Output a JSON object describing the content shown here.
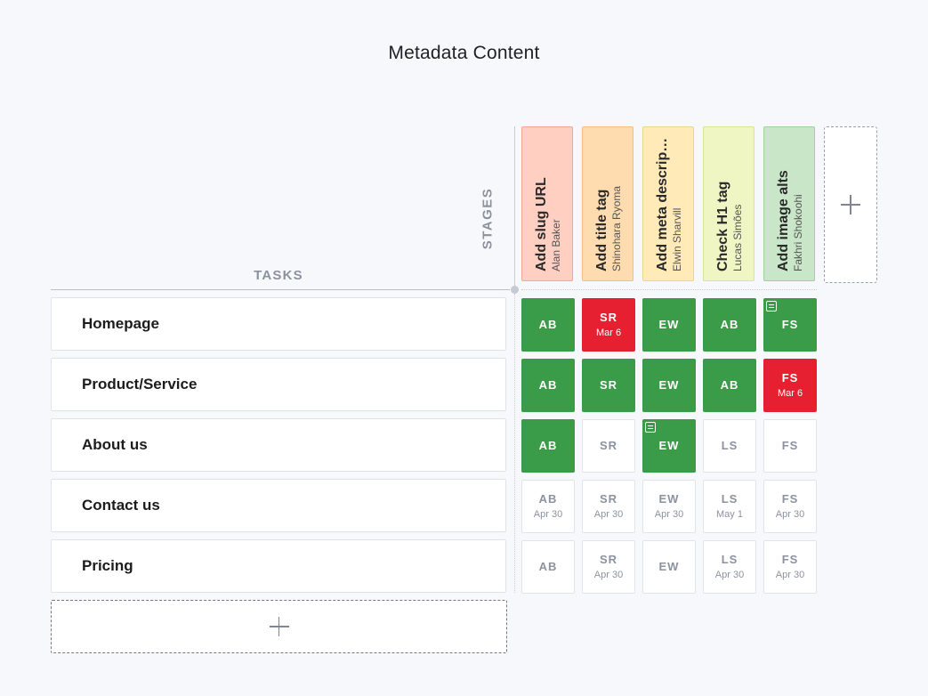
{
  "title": "Metadata Content",
  "labels": {
    "stages": "STAGES",
    "tasks": "TASKS"
  },
  "colors": {
    "done": "#3a9b48",
    "late": "#e62030",
    "stage_backgrounds": [
      "#ffcfc2",
      "#ffdcb0",
      "#ffeab8",
      "#f0f5c4",
      "#c9e7c8"
    ]
  },
  "stages": [
    {
      "name": "Add slug URL",
      "owner": "Alan Baker"
    },
    {
      "name": "Add title tag",
      "owner": "Shinohara Ryoma"
    },
    {
      "name": "Add meta descrip…",
      "owner": "Elwin Sharvill"
    },
    {
      "name": "Check H1 tag",
      "owner": "Lucas Simões"
    },
    {
      "name": "Add image alts",
      "owner": "Fakhri Shokoohi"
    }
  ],
  "tasks": [
    {
      "label": "Homepage"
    },
    {
      "label": "Product/Service"
    },
    {
      "label": "About us"
    },
    {
      "label": "Contact us"
    },
    {
      "label": "Pricing"
    }
  ],
  "cells": [
    [
      {
        "initials": "AB",
        "status": "done",
        "date": ""
      },
      {
        "initials": "SR",
        "status": "late",
        "date": "Mar 6"
      },
      {
        "initials": "EW",
        "status": "done",
        "date": ""
      },
      {
        "initials": "AB",
        "status": "done",
        "date": ""
      },
      {
        "initials": "FS",
        "status": "done",
        "date": "",
        "note": "note-icon"
      }
    ],
    [
      {
        "initials": "AB",
        "status": "done",
        "date": ""
      },
      {
        "initials": "SR",
        "status": "done",
        "date": ""
      },
      {
        "initials": "EW",
        "status": "done",
        "date": ""
      },
      {
        "initials": "AB",
        "status": "done",
        "date": ""
      },
      {
        "initials": "FS",
        "status": "late",
        "date": "Mar 6"
      }
    ],
    [
      {
        "initials": "AB",
        "status": "done",
        "date": ""
      },
      {
        "initials": "SR",
        "status": "todo",
        "date": ""
      },
      {
        "initials": "EW",
        "status": "done",
        "date": "",
        "note": "note-icon"
      },
      {
        "initials": "LS",
        "status": "todo",
        "date": ""
      },
      {
        "initials": "FS",
        "status": "todo",
        "date": ""
      }
    ],
    [
      {
        "initials": "AB",
        "status": "todo",
        "date": "Apr 30"
      },
      {
        "initials": "SR",
        "status": "todo",
        "date": "Apr 30"
      },
      {
        "initials": "EW",
        "status": "todo",
        "date": "Apr 30"
      },
      {
        "initials": "LS",
        "status": "todo",
        "date": "May 1"
      },
      {
        "initials": "FS",
        "status": "todo",
        "date": "Apr 30"
      }
    ],
    [
      {
        "initials": "AB",
        "status": "todo",
        "date": ""
      },
      {
        "initials": "SR",
        "status": "todo",
        "date": "Apr 30"
      },
      {
        "initials": "EW",
        "status": "todo",
        "date": ""
      },
      {
        "initials": "LS",
        "status": "todo",
        "date": "Apr 30"
      },
      {
        "initials": "FS",
        "status": "todo",
        "date": "Apr 30"
      }
    ]
  ],
  "icons": {
    "add_stage": "plus-icon",
    "add_task": "plus-icon"
  }
}
